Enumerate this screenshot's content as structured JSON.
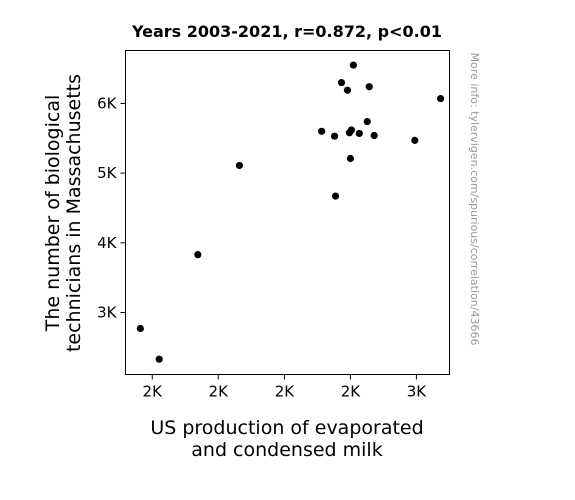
{
  "chart_data": {
    "type": "scatter",
    "title": "Years 2003-2021, r=0.872, p<0.01",
    "xlabel": [
      "US production of evaporated",
      "and condensed milk"
    ],
    "ylabel": [
      "The number of biological",
      "technicians in Massachusetts"
    ],
    "watermark": "More info: tylervigen.com/spurious/correlation/43666",
    "xlim": [
      1.365,
      3.0
    ],
    "ylim": [
      2110,
      6760
    ],
    "x_ticks": [
      {
        "value": 1.5,
        "label": "2K"
      },
      {
        "value": 1.833,
        "label": "2K"
      },
      {
        "value": 2.167,
        "label": "2K"
      },
      {
        "value": 2.5,
        "label": "2K"
      },
      {
        "value": 2.833,
        "label": "3K"
      }
    ],
    "y_ticks": [
      {
        "value": 3000,
        "label": "3K"
      },
      {
        "value": 4000,
        "label": "4K"
      },
      {
        "value": 5000,
        "label": "5K"
      },
      {
        "value": 6000,
        "label": "6K"
      }
    ],
    "points": [
      {
        "x": 1.44,
        "y": 2770
      },
      {
        "x": 1.535,
        "y": 2330
      },
      {
        "x": 1.73,
        "y": 3830
      },
      {
        "x": 1.94,
        "y": 5110
      },
      {
        "x": 2.355,
        "y": 5600
      },
      {
        "x": 2.42,
        "y": 5530
      },
      {
        "x": 2.425,
        "y": 4670
      },
      {
        "x": 2.455,
        "y": 6300
      },
      {
        "x": 2.485,
        "y": 6190
      },
      {
        "x": 2.495,
        "y": 5580
      },
      {
        "x": 2.5,
        "y": 5210
      },
      {
        "x": 2.505,
        "y": 5620
      },
      {
        "x": 2.515,
        "y": 6550
      },
      {
        "x": 2.545,
        "y": 5570
      },
      {
        "x": 2.585,
        "y": 5740
      },
      {
        "x": 2.595,
        "y": 6240
      },
      {
        "x": 2.62,
        "y": 5540
      },
      {
        "x": 2.825,
        "y": 5470
      },
      {
        "x": 2.955,
        "y": 6070
      }
    ],
    "marker_color": "#000000",
    "grid": false
  }
}
